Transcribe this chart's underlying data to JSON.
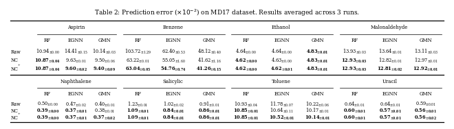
{
  "title": "Table 2: Prediction error ($\\times10^{-2}$) on MD17 dataset. Results averaged across 3 runs.",
  "sections_top": [
    "Aspirin",
    "Benzene",
    "Ethanol",
    "Malonaldehyde"
  ],
  "sections_bot": [
    "Naphthalene",
    "Salicylic",
    "Toluene",
    "Uracil"
  ],
  "col_labels": [
    "RF",
    "EGNN",
    "GMN"
  ],
  "top_data": [
    [
      [
        "10.94",
        "0.00"
      ],
      [
        "14.41",
        "0.15"
      ],
      [
        "10.14",
        "0.03"
      ],
      [
        "103.72",
        "1.29"
      ],
      [
        "62.40",
        "0.53"
      ],
      [
        "48.12",
        "0.40"
      ],
      [
        "4.64",
        "0.00"
      ],
      [
        "4.64",
        "0.00"
      ],
      [
        "4.83",
        "0.01"
      ],
      [
        "13.93",
        "0.03"
      ],
      [
        "13.64",
        "0.01"
      ],
      [
        "13.11",
        "0.03"
      ]
    ],
    [
      [
        "10.87",
        "0.04"
      ],
      [
        "9.63",
        "0.01"
      ],
      [
        "9.50",
        "0.06"
      ],
      [
        "63.22",
        "0.01"
      ],
      [
        "55.05",
        "1.60"
      ],
      [
        "41.62",
        "1.16"
      ],
      [
        "4.62",
        "0.00"
      ],
      [
        "4.63",
        "0.00"
      ],
      [
        "4.83",
        "0.01"
      ],
      [
        "12.93",
        "0.03"
      ],
      [
        "12.82",
        "0.01"
      ],
      [
        "12.97",
        "0.01"
      ]
    ],
    [
      [
        "10.87",
        "0.04"
      ],
      [
        "9.60",
        "0.02"
      ],
      [
        "9.40",
        "0.09"
      ],
      [
        "63.04",
        "0.05"
      ],
      [
        "54.76",
        "0.74"
      ],
      [
        "41.26",
        "0.15"
      ],
      [
        "4.62",
        "0.00"
      ],
      [
        "4.62",
        "0.01"
      ],
      [
        "4.83",
        "0.01"
      ],
      [
        "12.93",
        "0.03"
      ],
      [
        "12.81",
        "0.02"
      ],
      [
        "12.92",
        "0.01"
      ]
    ]
  ],
  "bot_data": [
    [
      [
        "0.50",
        "0.00"
      ],
      [
        "0.47",
        "0.02"
      ],
      [
        "0.40",
        "0.01"
      ],
      [
        "1.23",
        "0.01"
      ],
      [
        "1.02",
        "0.02"
      ],
      [
        "0.91",
        "0.01"
      ],
      [
        "10.93",
        "0.04"
      ],
      [
        "11.78",
        "0.07"
      ],
      [
        "10.22",
        "0.06"
      ],
      [
        "0.64",
        "0.01"
      ],
      [
        "0.64",
        "0.01"
      ],
      [
        "0.59",
        "0.01"
      ]
    ],
    [
      [
        "0.39",
        "0.00"
      ],
      [
        "0.37",
        "0.01"
      ],
      [
        "0.38",
        "0.01"
      ],
      [
        "1.09",
        "0.01"
      ],
      [
        "0.84",
        "0.01"
      ],
      [
        "0.86",
        "0.01"
      ],
      [
        "10.85",
        "0.01"
      ],
      [
        "10.64",
        "0.11"
      ],
      [
        "10.17",
        "0.01"
      ],
      [
        "0.60",
        "0.01"
      ],
      [
        "0.57",
        "0.01"
      ],
      [
        "0.56",
        "0.01"
      ]
    ],
    [
      [
        "0.39",
        "0.00"
      ],
      [
        "0.37",
        "0.01"
      ],
      [
        "0.37",
        "0.02"
      ],
      [
        "1.09",
        "0.01"
      ],
      [
        "0.84",
        "0.01"
      ],
      [
        "0.86",
        "0.01"
      ],
      [
        "10.85",
        "0.01"
      ],
      [
        "10.52",
        "0.01"
      ],
      [
        "10.14",
        "0.01"
      ],
      [
        "0.60",
        "0.01"
      ],
      [
        "0.57",
        "0.01"
      ],
      [
        "0.56",
        "0.02"
      ]
    ]
  ],
  "bold_top": [
    [
      false,
      false,
      false,
      false,
      false,
      false,
      false,
      false,
      true,
      false,
      false,
      false
    ],
    [
      true,
      false,
      false,
      false,
      false,
      false,
      true,
      false,
      true,
      true,
      false,
      false
    ],
    [
      true,
      true,
      true,
      true,
      true,
      true,
      true,
      true,
      true,
      true,
      true,
      true
    ]
  ],
  "bold_bot": [
    [
      false,
      false,
      false,
      false,
      false,
      false,
      false,
      false,
      false,
      false,
      false,
      false
    ],
    [
      true,
      true,
      false,
      true,
      true,
      true,
      true,
      false,
      false,
      true,
      true,
      true
    ],
    [
      true,
      true,
      true,
      true,
      true,
      true,
      true,
      true,
      true,
      true,
      true,
      true
    ]
  ]
}
